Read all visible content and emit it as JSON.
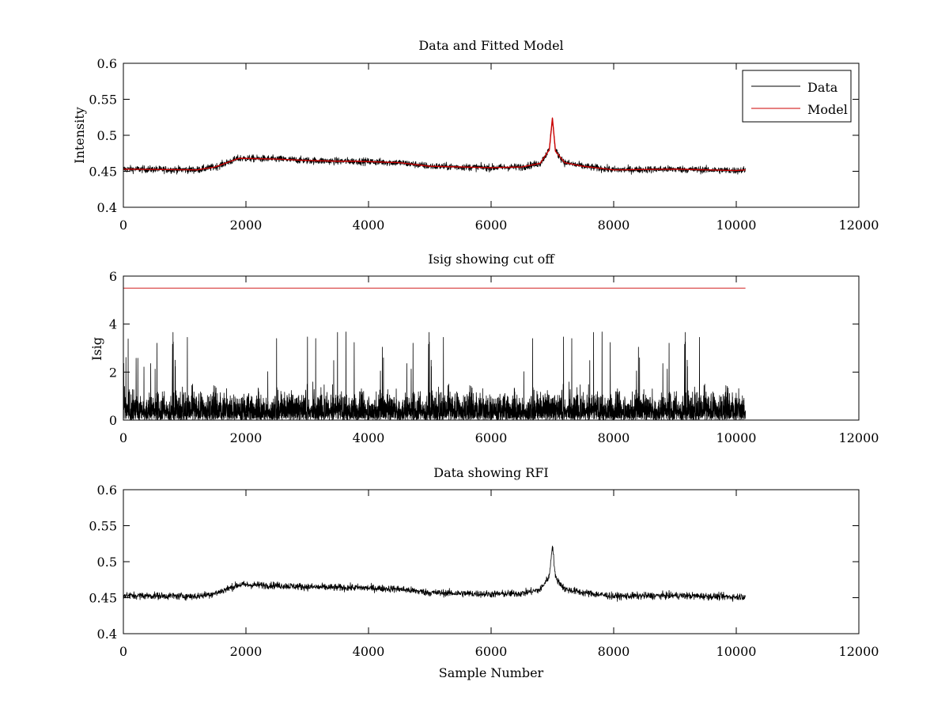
{
  "colors": {
    "data_trace": "#000000",
    "model_trace": "#cc0000",
    "cutoff_line": "#cc0000",
    "axes": "#000000",
    "background": "#ffffff"
  },
  "chart_data": [
    {
      "type": "line",
      "title": "Data and Fitted Model",
      "xlabel": "",
      "ylabel": "Intensity",
      "xlim": [
        0,
        12000
      ],
      "ylim": [
        0.4,
        0.6
      ],
      "xticks": [
        0,
        2000,
        4000,
        6000,
        8000,
        10000,
        12000
      ],
      "xtick_labels": [
        "0",
        "2000",
        "4000",
        "6000",
        "8000",
        "10000",
        "12000"
      ],
      "yticks": [
        0.4,
        0.45,
        0.5,
        0.55,
        0.6
      ],
      "ytick_labels": [
        "0.4",
        "0.45",
        "0.5",
        "0.55",
        "0.6"
      ],
      "grid": false,
      "legend": {
        "position": "top-right",
        "entries": [
          "Data",
          "Model"
        ]
      },
      "series": [
        {
          "name": "Data",
          "color": "#000000",
          "style": "noisy",
          "noise_amplitude": 0.006,
          "x": [
            0,
            1200,
            1500,
            1850,
            1900,
            2500,
            3000,
            3500,
            3800,
            4500,
            5000,
            6000,
            6500,
            6800,
            6950,
            7000,
            7050,
            7200,
            7500,
            8000,
            9000,
            10000,
            10150
          ],
          "y": [
            0.453,
            0.452,
            0.456,
            0.467,
            0.468,
            0.467,
            0.465,
            0.464,
            0.464,
            0.462,
            0.457,
            0.455,
            0.456,
            0.461,
            0.48,
            0.524,
            0.478,
            0.462,
            0.457,
            0.452,
            0.453,
            0.451,
            0.452
          ]
        },
        {
          "name": "Model",
          "color": "#cc0000",
          "style": "smooth",
          "x": [
            0,
            1200,
            1500,
            1850,
            1900,
            2500,
            3000,
            3500,
            3800,
            4500,
            5000,
            6000,
            6500,
            6800,
            6950,
            7000,
            7050,
            7200,
            7500,
            8000,
            9000,
            10000,
            10150
          ],
          "y": [
            0.453,
            0.452,
            0.456,
            0.467,
            0.468,
            0.467,
            0.465,
            0.464,
            0.464,
            0.462,
            0.457,
            0.455,
            0.456,
            0.461,
            0.48,
            0.524,
            0.478,
            0.462,
            0.457,
            0.452,
            0.453,
            0.451,
            0.452
          ]
        }
      ]
    },
    {
      "type": "line",
      "title": "Isig showing cut off",
      "xlabel": "",
      "ylabel": "Isig",
      "xlim": [
        0,
        12000
      ],
      "ylim": [
        0,
        6
      ],
      "xticks": [
        0,
        2000,
        4000,
        6000,
        8000,
        10000,
        12000
      ],
      "xtick_labels": [
        "0",
        "2000",
        "4000",
        "6000",
        "8000",
        "10000",
        "12000"
      ],
      "yticks": [
        0,
        2,
        4,
        6
      ],
      "ytick_labels": [
        "0",
        "2",
        "4",
        "6"
      ],
      "grid": false,
      "series": [
        {
          "color": "#000000",
          "style": "spiky",
          "x": [
            0,
            10150
          ],
          "typical_max": 2.0,
          "peak_max": 3.7
        },
        {
          "color": "#cc0000",
          "style": "flat",
          "x": [
            0,
            10150
          ],
          "y": [
            5.5,
            5.5
          ]
        }
      ]
    },
    {
      "type": "line",
      "title": "Data showing RFI",
      "xlabel": "Sample Number",
      "ylabel": "",
      "xlim": [
        0,
        12000
      ],
      "ylim": [
        0.4,
        0.6
      ],
      "xticks": [
        0,
        2000,
        4000,
        6000,
        8000,
        10000,
        12000
      ],
      "xtick_labels": [
        "0",
        "2000",
        "4000",
        "6000",
        "8000",
        "10000",
        "12000"
      ],
      "yticks": [
        0.4,
        0.45,
        0.5,
        0.55,
        0.6
      ],
      "ytick_labels": [
        "0.4",
        "0.45",
        "0.5",
        "0.55",
        "0.6"
      ],
      "grid": false,
      "series": [
        {
          "color": "#000000",
          "style": "noisy",
          "noise_amplitude": 0.006,
          "x": [
            0,
            1200,
            1500,
            1850,
            1900,
            2500,
            3000,
            3500,
            3800,
            4500,
            5000,
            6000,
            6500,
            6800,
            6950,
            7000,
            7050,
            7200,
            7500,
            8000,
            9000,
            10000,
            10150
          ],
          "y": [
            0.453,
            0.452,
            0.456,
            0.467,
            0.468,
            0.467,
            0.465,
            0.464,
            0.464,
            0.462,
            0.457,
            0.455,
            0.456,
            0.461,
            0.48,
            0.524,
            0.478,
            0.462,
            0.457,
            0.452,
            0.453,
            0.451,
            0.452
          ]
        }
      ]
    }
  ]
}
